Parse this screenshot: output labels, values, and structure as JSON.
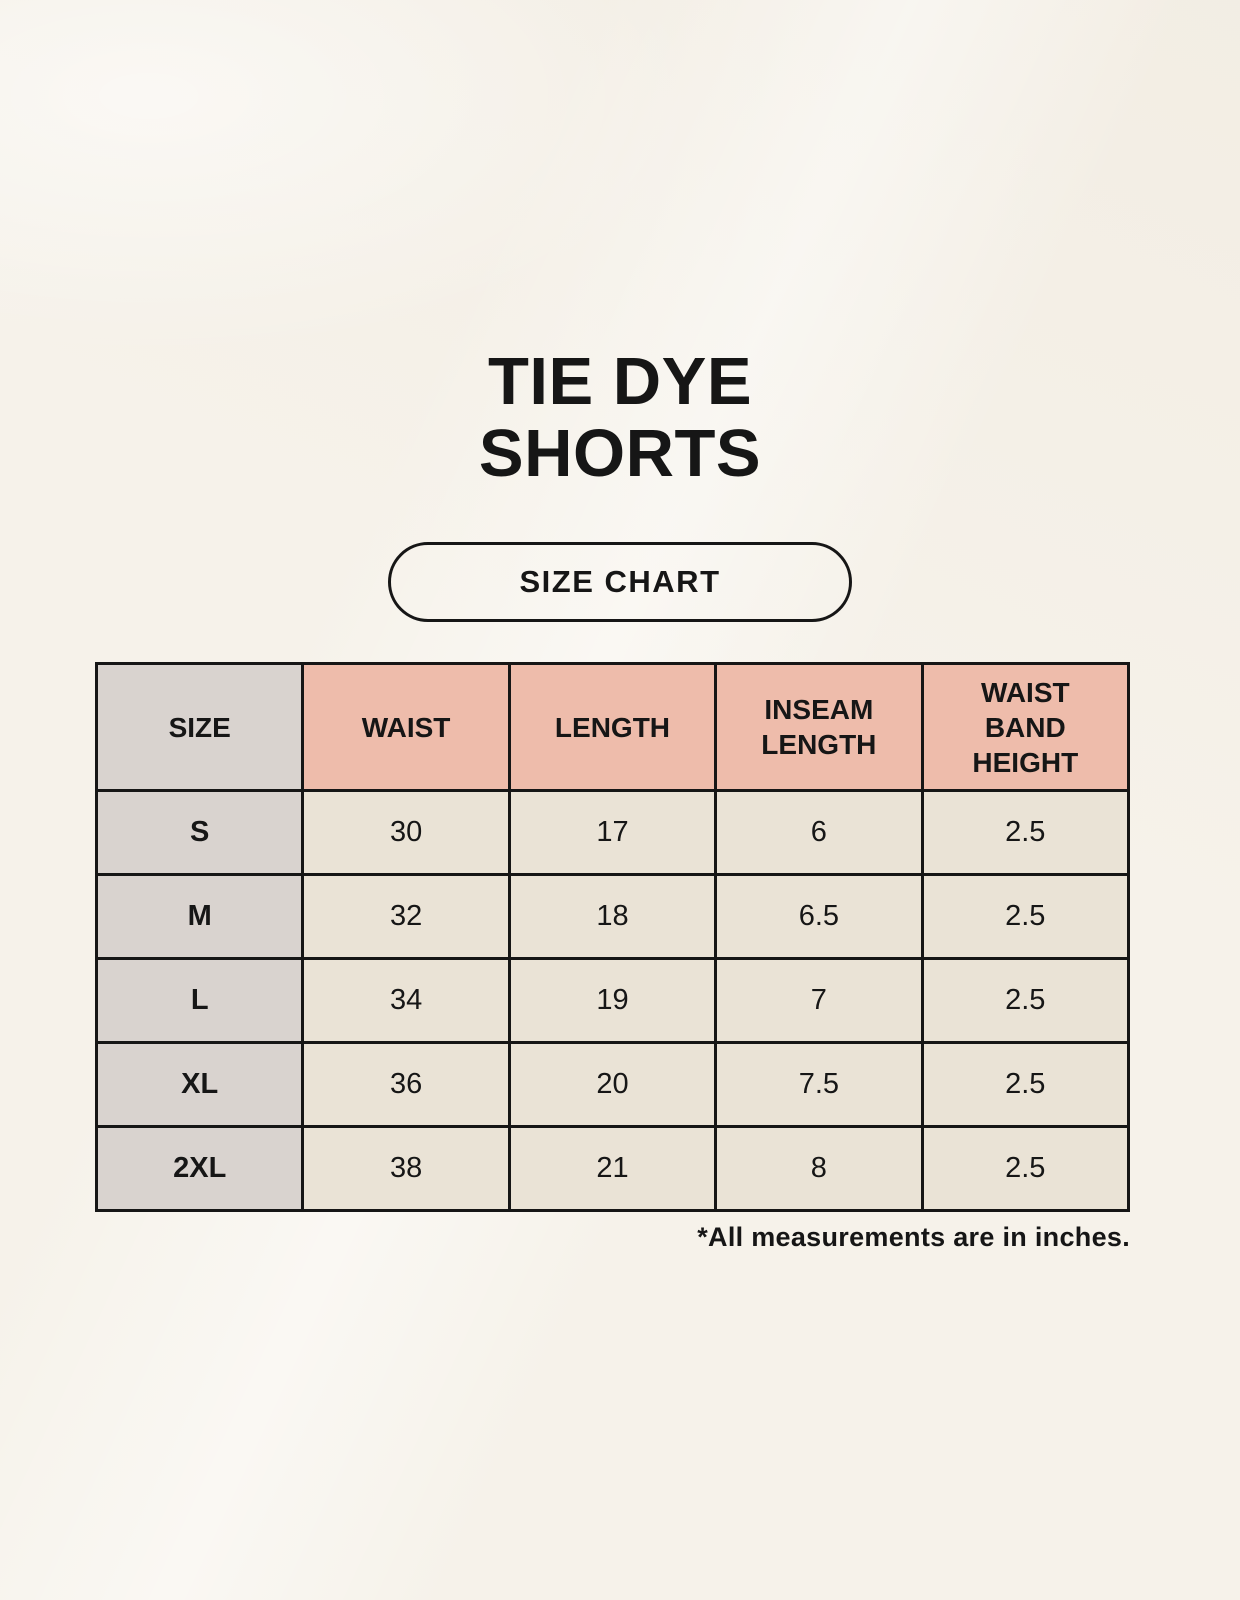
{
  "colors": {
    "page-bg": "#f6f2ea",
    "header-pink": "#eebcab",
    "label-gray": "#d9d3cf",
    "cell-cream": "#eae3d6",
    "table-border": "#161616",
    "text": "#161616"
  },
  "header": {
    "title_line1": "TIE DYE",
    "title_line2": "SHORTS",
    "badge_label": "SIZE CHART"
  },
  "chart_data": {
    "type": "table",
    "title": "TIE DYE SHORTS",
    "subtitle": "SIZE CHART",
    "units": "inches",
    "columns": [
      "SIZE",
      "WAIST",
      "LENGTH",
      "INSEAM LENGTH",
      "WAIST BAND HEIGHT"
    ],
    "rows": [
      [
        "S",
        "30",
        "17",
        "6",
        "2.5"
      ],
      [
        "M",
        "32",
        "18",
        "6.5",
        "2.5"
      ],
      [
        "L",
        "34",
        "19",
        "7",
        "2.5"
      ],
      [
        "XL",
        "36",
        "20",
        "7.5",
        "2.5"
      ],
      [
        "2XL",
        "38",
        "21",
        "8",
        "2.5"
      ]
    ],
    "footnote": "*All measurements are in inches."
  }
}
